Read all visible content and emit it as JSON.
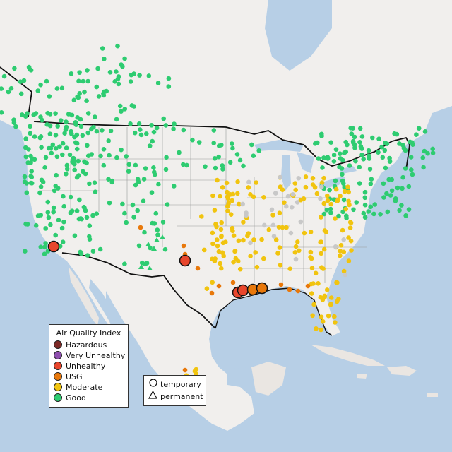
{
  "legend": {
    "title": "Air Quality Index",
    "categories": [
      {
        "label": "Hazardous",
        "color": "#7e2a26"
      },
      {
        "label": "Very Unhealthy",
        "color": "#8e4fae"
      },
      {
        "label": "Unhealthy",
        "color": "#e8462c"
      },
      {
        "label": "USG",
        "color": "#e8780b"
      },
      {
        "label": "Moderate",
        "color": "#f1c40f"
      },
      {
        "label": "Good",
        "color": "#2ecc71"
      }
    ]
  },
  "shape_legend": {
    "temporary": "temporary",
    "permanent": "permanent"
  },
  "colors": {
    "ocean": "#b7cfe6",
    "land": "#f1efed",
    "mexico_land": "#eae6e2",
    "border": "#111111",
    "state_lines": "#999999",
    "nodata_gray": "#c8c8c8"
  }
}
